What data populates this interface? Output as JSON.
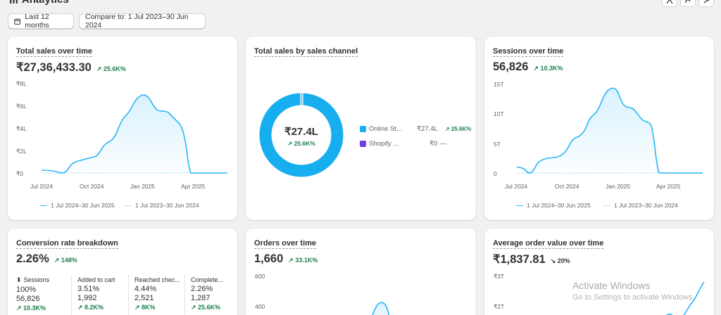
{
  "header": {
    "title": "Analytics",
    "date_filter": "Last 12 months",
    "compare_filter": "Compare to: 1 Jul 2023–30 Jun 2024"
  },
  "cards": {
    "total_sales": {
      "title": "Total sales over time",
      "value": "₹27,36,433.30",
      "delta": "↗ 25.6K%",
      "y_ticks": [
        "₹8L",
        "₹6L",
        "₹4L",
        "₹2L",
        "₹0"
      ],
      "x_ticks": [
        "Jul 2024",
        "Oct 2024",
        "Jan 2025",
        "Apr 2025"
      ],
      "legend_current": "1 Jul 2024–30 Jun 2025",
      "legend_previous": "1 Jul 2023–30 Jun 2024"
    },
    "sales_by_channel": {
      "title": "Total sales by sales channel",
      "center_value": "₹27.4L",
      "center_delta": "↗ 25.6K%",
      "rows": [
        {
          "name": "Online St...",
          "value": "₹27.4L",
          "delta": "↗ 25.6K%",
          "color": "#17aef0"
        },
        {
          "name": "Shopify ...",
          "value": "₹0",
          "delta": "—",
          "color": "#6c3ce6"
        }
      ]
    },
    "sessions": {
      "title": "Sessions over time",
      "value": "56,826",
      "delta": "↗ 10.3K%",
      "y_ticks": [
        "15T",
        "10T",
        "5T",
        "0"
      ],
      "x_ticks": [
        "Jul 2024",
        "Oct 2024",
        "Jan 2025",
        "Apr 2025"
      ],
      "legend_current": "1 Jul 2024–30 Jun 2025",
      "legend_previous": "1 Jul 2023–30 Jun 2024"
    },
    "conversion": {
      "title": "Conversion rate breakdown",
      "value": "2.26%",
      "delta": "↗ 148%",
      "columns": [
        {
          "label": "Sessions",
          "pct": "100%",
          "count": "56,826",
          "delta": "↗ 10.3K%"
        },
        {
          "label": "Added to cart",
          "pct": "3.51%",
          "count": "1,992",
          "delta": "↗ 8.2K%"
        },
        {
          "label": "Reached chec...",
          "pct": "4.44%",
          "count": "2,521",
          "delta": "↗ 8K%"
        },
        {
          "label": "Complete...",
          "pct": "2.26%",
          "count": "1,287",
          "delta": "↗ 25.6K%"
        }
      ]
    },
    "orders": {
      "title": "Orders over time",
      "value": "1,660",
      "delta": "↗ 33.1K%",
      "y_ticks": [
        "600",
        "400"
      ]
    },
    "aov": {
      "title": "Average order value over time",
      "value": "₹1,837.81",
      "delta": "↘ 20%",
      "y_ticks": [
        "₹3T",
        "₹2T"
      ]
    }
  },
  "watermark": {
    "line1": "Activate Windows",
    "line2": "Go to Settings to activate Windows."
  }
}
